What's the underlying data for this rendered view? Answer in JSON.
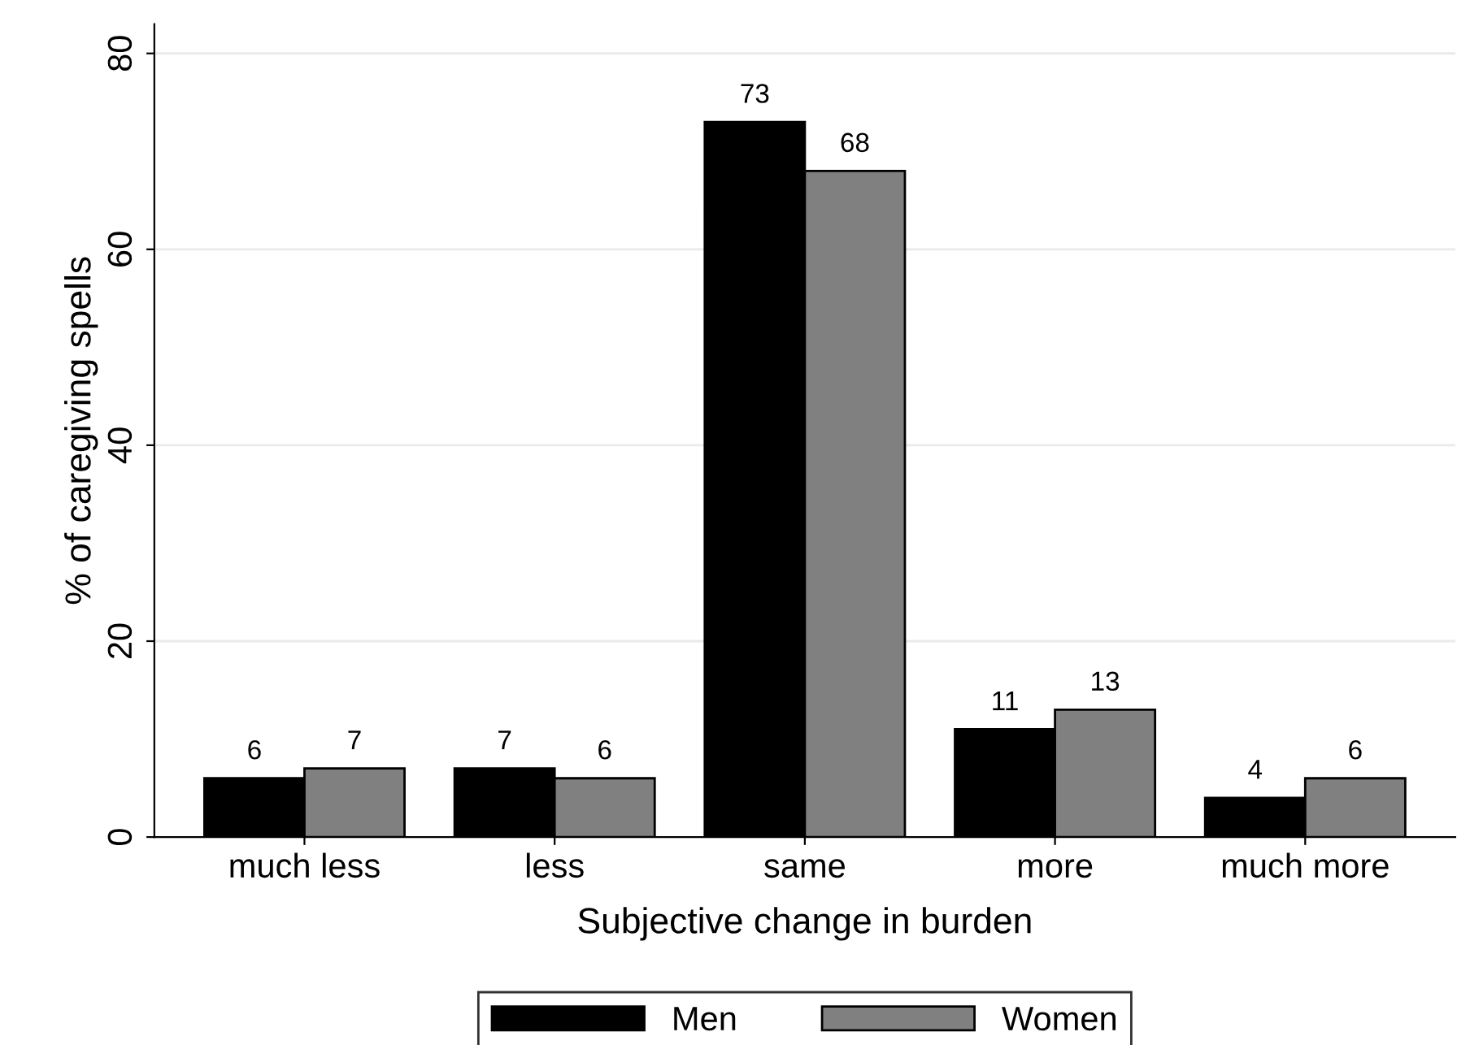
{
  "chart_data": {
    "type": "bar",
    "xlabel": "Subjective change in burden",
    "ylabel": "% of caregiving spells",
    "categories": [
      "much less",
      "less",
      "same",
      "more",
      "much more"
    ],
    "series": [
      {
        "name": "Men",
        "color": "#000000",
        "values": [
          6,
          7,
          73,
          11,
          4
        ]
      },
      {
        "name": "Women",
        "color": "#808080",
        "values": [
          7,
          6,
          68,
          13,
          6
        ]
      }
    ],
    "ylim": [
      0,
      83
    ],
    "yticks": [
      0,
      20,
      40,
      60,
      80
    ],
    "grid": "y",
    "legend": "bottom",
    "data_labels": true
  }
}
